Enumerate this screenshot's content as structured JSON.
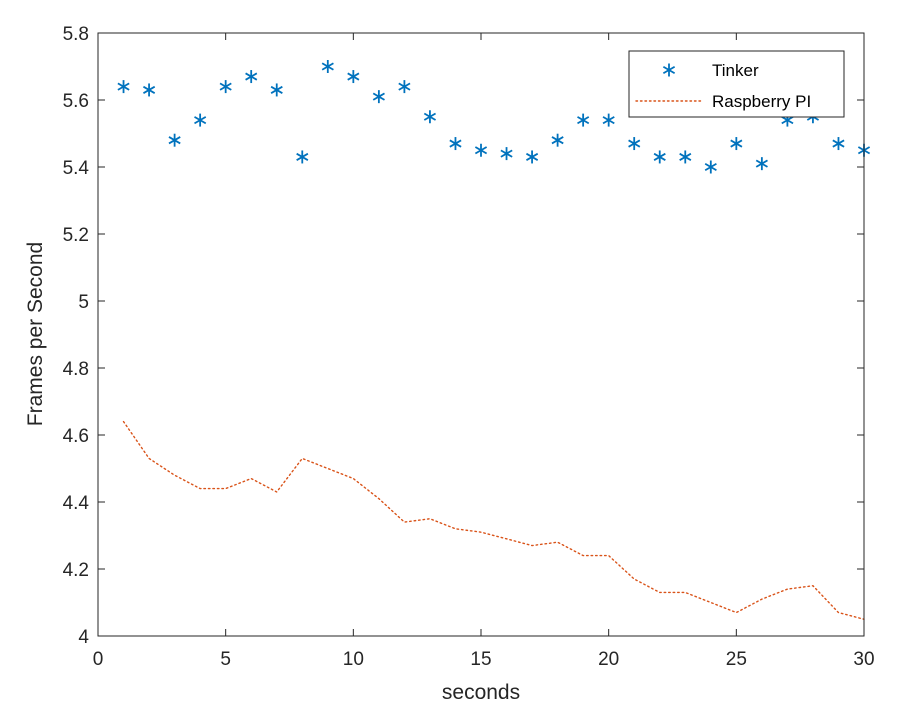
{
  "chart_data": {
    "type": "line",
    "xlabel": "seconds",
    "ylabel": "Frames per Second",
    "xlim": [
      0,
      30
    ],
    "ylim": [
      4,
      5.8
    ],
    "xticks": [
      "0",
      "5",
      "10",
      "15",
      "20",
      "25",
      "30"
    ],
    "yticks": [
      "4",
      "4.2",
      "4.4",
      "4.6",
      "4.8",
      "5",
      "5.2",
      "5.4",
      "5.6",
      "5.8"
    ],
    "grid": false,
    "legend_position": "top-right",
    "x": [
      1,
      2,
      3,
      4,
      5,
      6,
      7,
      8,
      9,
      10,
      11,
      12,
      13,
      14,
      15,
      16,
      17,
      18,
      19,
      20,
      21,
      22,
      23,
      24,
      25,
      26,
      27,
      28,
      29,
      30
    ],
    "series": [
      {
        "name": "Tinker",
        "style": "markers-asterisk",
        "color": "#0072bd",
        "values": [
          5.64,
          5.63,
          5.48,
          5.54,
          5.64,
          5.67,
          5.63,
          5.43,
          5.7,
          5.67,
          5.61,
          5.64,
          5.55,
          5.47,
          5.45,
          5.44,
          5.43,
          5.48,
          5.54,
          5.54,
          5.47,
          5.43,
          5.43,
          5.4,
          5.47,
          5.41,
          5.54,
          5.55,
          5.47,
          5.45
        ]
      },
      {
        "name": "Raspberry PI",
        "style": "dotted-line",
        "color": "#d95319",
        "values": [
          4.64,
          4.53,
          4.48,
          4.44,
          4.44,
          4.47,
          4.43,
          4.53,
          4.5,
          4.47,
          4.41,
          4.34,
          4.35,
          4.32,
          4.31,
          4.29,
          4.27,
          4.28,
          4.24,
          4.24,
          4.17,
          4.13,
          4.13,
          4.1,
          4.07,
          4.11,
          4.14,
          4.15,
          4.07,
          4.05
        ]
      }
    ]
  }
}
